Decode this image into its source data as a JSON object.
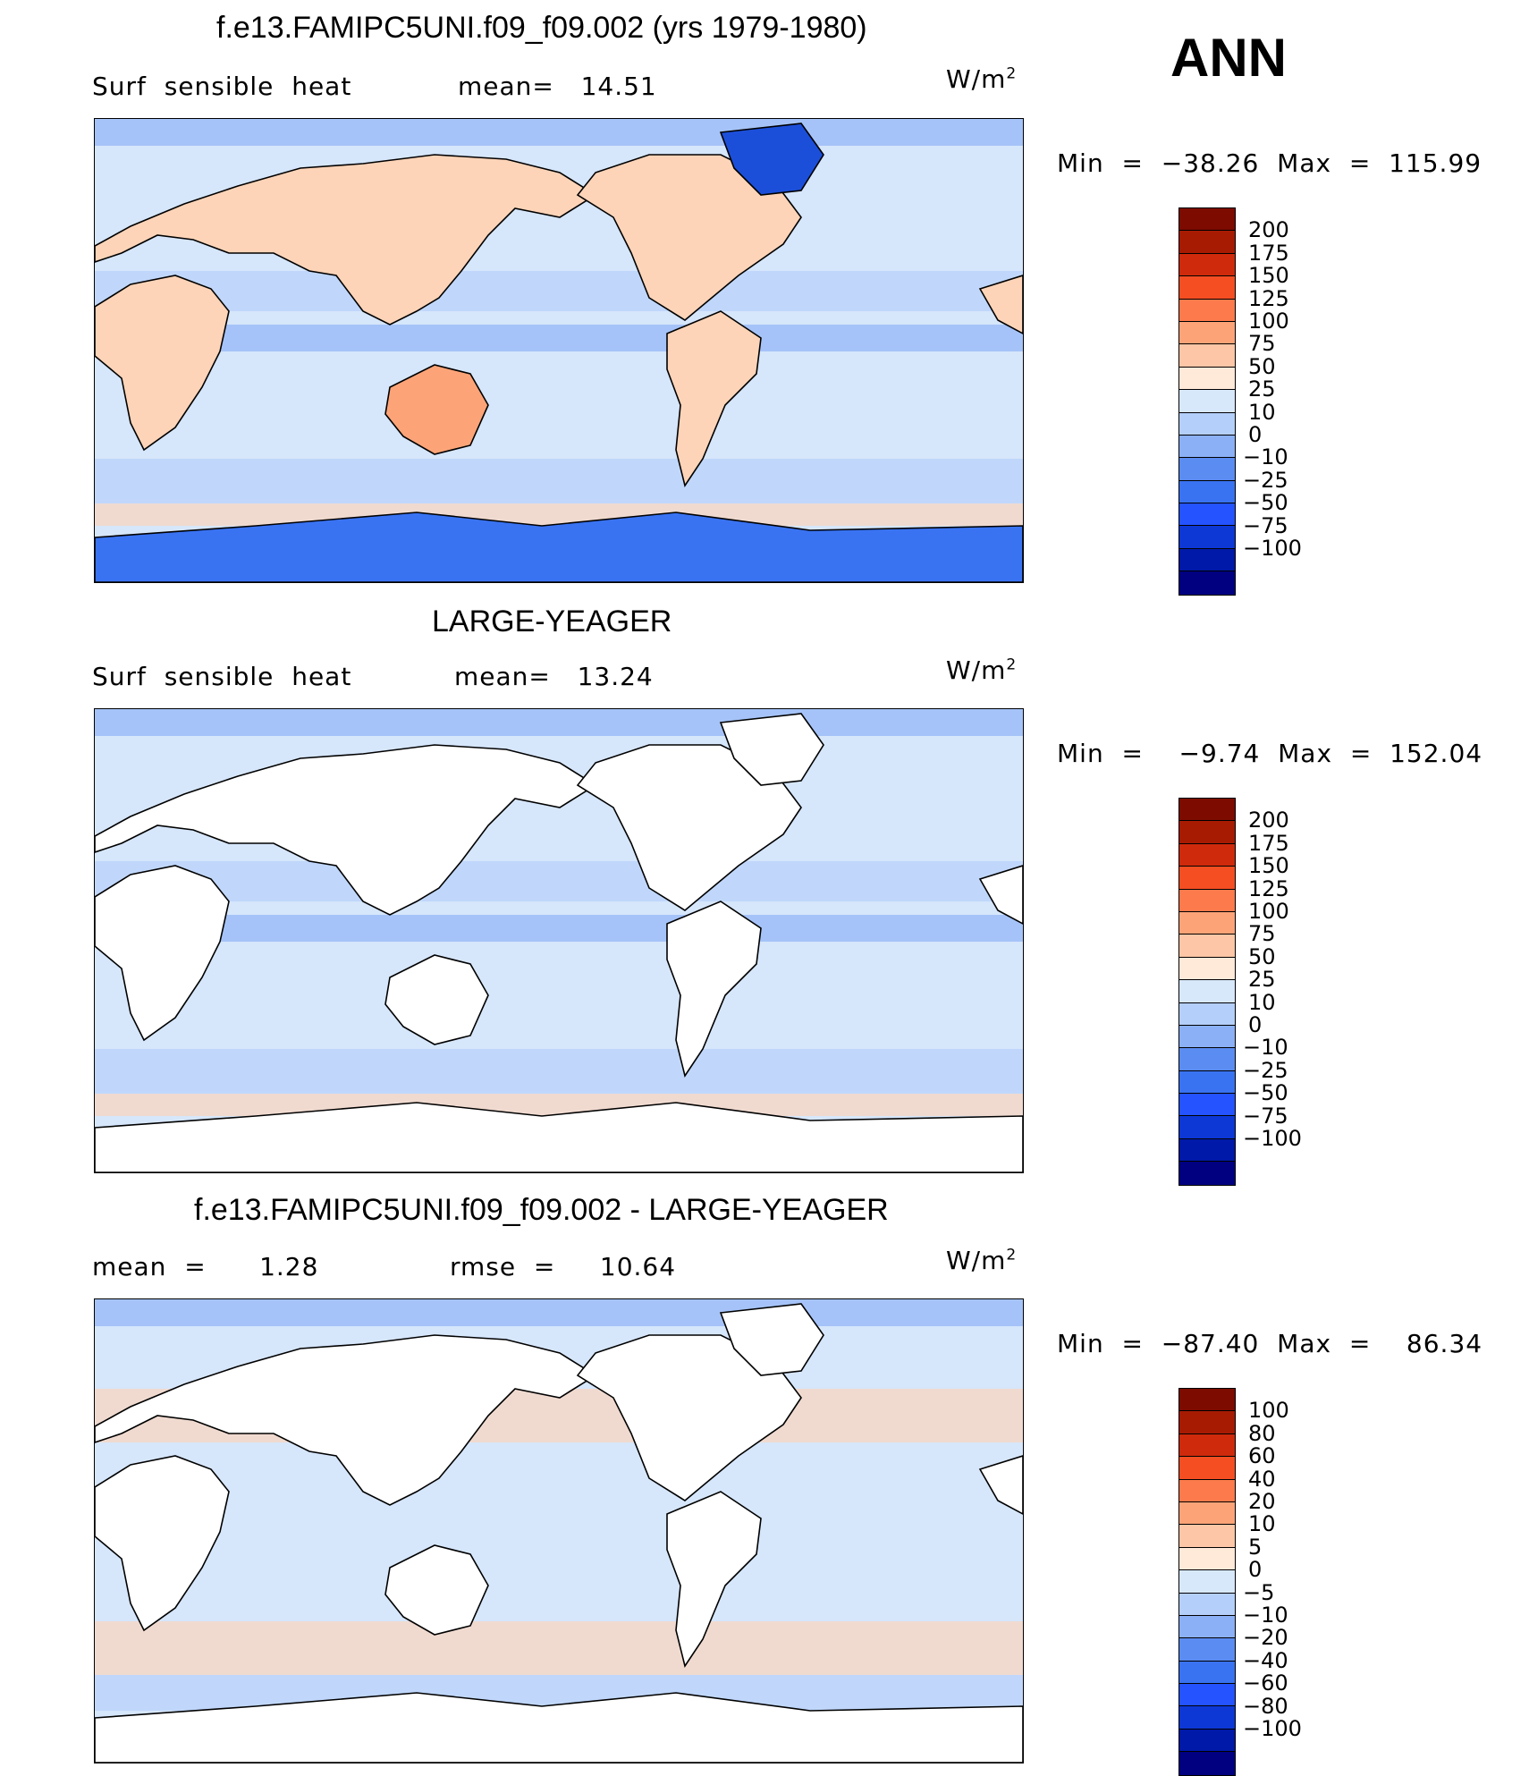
{
  "ann_label": "ANN",
  "colors": {
    "abs_scale": [
      "#000080",
      "#0019a8",
      "#0d38d6",
      "#2453ff",
      "#3973f2",
      "#5b8cf2",
      "#8bb0f6",
      "#b4cffa",
      "#d8e8fb",
      "#ffe9d9",
      "#fdc6a6",
      "#fca478",
      "#fc7a4c",
      "#f54e22",
      "#cf2a0c",
      "#a81b03",
      "#7d0b00"
    ],
    "diff_scale": [
      "#000080",
      "#0019a8",
      "#0d38d6",
      "#2453ff",
      "#3973f2",
      "#5b8cf2",
      "#8bb0f6",
      "#b4cffa",
      "#d8e8fb",
      "#ffe9d9",
      "#fdc6a6",
      "#fca478",
      "#fc7a4c",
      "#f54e22",
      "#cf2a0c",
      "#a81b03",
      "#7d0b00"
    ],
    "ocean_light": "#d6e6fb",
    "ocean_mid": "#b4cffa",
    "ocean_dark": "#8bb0f6",
    "land_warm": "#fdd4b8",
    "land_hot": "#fca478",
    "ice": "#3973f2",
    "greenland": "#1c4fd9",
    "coast": "#000000"
  },
  "panels": [
    {
      "title": "f.e13.FAMIPC5UNI.f09_f09.002 (yrs 1979-1980)",
      "left_label": "Surf  sensible  heat",
      "middle_label": "mean=   14.51",
      "units": "W/m",
      "units_sup": "2",
      "min_max": "Min  =  −38.26  Max  =  115.99",
      "land_filled": true,
      "scale": "abs",
      "ticks": [
        "200",
        "175",
        "150",
        "125",
        "100",
        "75",
        "50",
        "25",
        "10",
        "0",
        "−10",
        "−25",
        "−50",
        "−75",
        "−100"
      ]
    },
    {
      "title": "LARGE-YEAGER",
      "left_label": "Surf  sensible  heat",
      "middle_label": "mean=   13.24",
      "units": "W/m",
      "units_sup": "2",
      "min_max": "Min  =    −9.74  Max  =  152.04",
      "land_filled": false,
      "scale": "abs",
      "ticks": [
        "200",
        "175",
        "150",
        "125",
        "100",
        "75",
        "50",
        "25",
        "10",
        "0",
        "−10",
        "−25",
        "−50",
        "−75",
        "−100"
      ]
    },
    {
      "title": "f.e13.FAMIPC5UNI.f09_f09.002 - LARGE-YEAGER",
      "left_label": "mean  =      1.28",
      "middle_label": "rmse  =     10.64",
      "units": "W/m",
      "units_sup": "2",
      "min_max": "Min  =  −87.40  Max  =    86.34",
      "land_filled": false,
      "scale": "diff",
      "ticks": [
        "100",
        "80",
        "60",
        "40",
        "20",
        "10",
        "5",
        "0",
        "−5",
        "−10",
        "−20",
        "−40",
        "−60",
        "−80",
        "−100"
      ]
    }
  ]
}
